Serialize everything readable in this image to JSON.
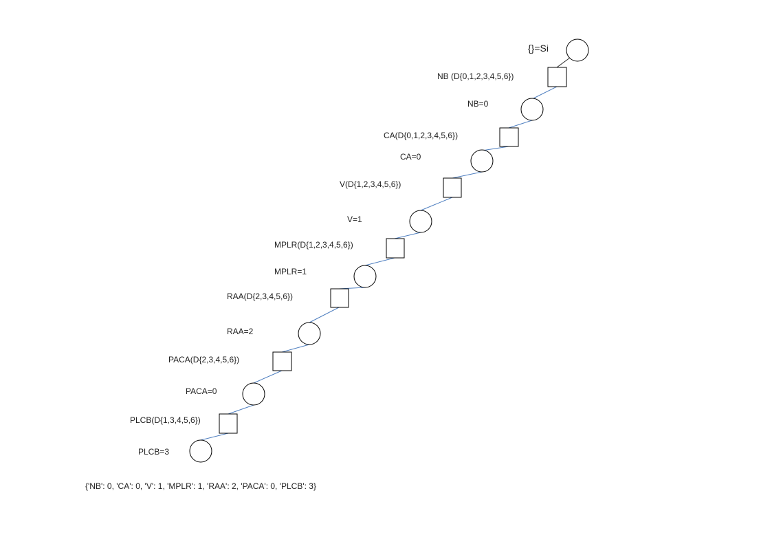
{
  "root_label": "{}=Si",
  "decisions": [
    {
      "label": "NB (D{0,1,2,3,4,5,6})",
      "assignment": "NB=0"
    },
    {
      "label": "CA(D{0,1,2,3,4,5,6})",
      "assignment": "CA=0"
    },
    {
      "label": "V(D{1,2,3,4,5,6})",
      "assignment": "V=1"
    },
    {
      "label": "MPLR(D{1,2,3,4,5,6})",
      "assignment": "MPLR=1"
    },
    {
      "label": "RAA(D{2,3,4,5,6})",
      "assignment": "RAA=2"
    },
    {
      "label": "PACA(D{2,3,4,5,6})",
      "assignment": "PACA=0"
    },
    {
      "label": "PLCB(D{1,3,4,5,6})",
      "assignment": "PLCB=3"
    }
  ],
  "result": "{'NB': 0, 'CA': 0, 'V': 1, 'MPLR': 1, 'RAA': 2, 'PACA': 0, 'PLCB': 3}",
  "colors": {
    "link": "#4f7fc0",
    "node_stroke": "#000000"
  }
}
